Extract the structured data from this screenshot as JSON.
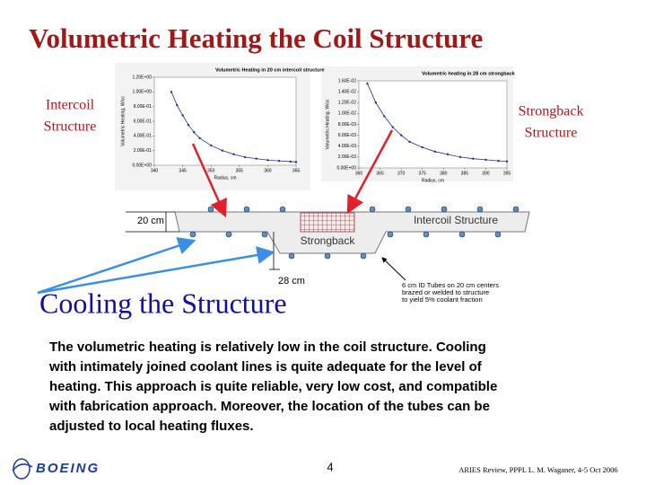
{
  "slide_title": "Volumetric Heating the Coil Structure",
  "labels": {
    "intercoil": [
      "Intercoil",
      "Structure"
    ],
    "strongback": [
      "Strongback",
      "Structure"
    ],
    "cooling": "Cooling the Structure"
  },
  "diagram": {
    "dim_top": "20 cm",
    "dim_bottom": "28 cm",
    "intercoil": "Intercoil Structure",
    "strongback": "Strongback",
    "note": [
      "6 cm ID Tubes on 20 cm centers",
      "brazed or welded to structure",
      "to yield 5% coolant fraction"
    ]
  },
  "body": [
    "The volumetric heating is relatively low in the coil structure. Cooling",
    "with intimately joined coolant lines is quite adequate for the level of",
    "heating. This approach is quite reliable, very low cost, and compatible",
    "with fabrication approach.   Moreover, the location of the tubes can be",
    "adjusted to local heating fluxes."
  ],
  "footer": {
    "logo": "BOEING",
    "page": "4",
    "credit": "ARIES Review, PPPL   L. M. Waganer, 4-5 Oct 2006"
  },
  "chart_data": [
    {
      "type": "line",
      "title": "Volumetric Heating in 20 cm intercoil structure",
      "x_label": "Radius, cm",
      "y_label": "Volumetric Heating, W/cc",
      "color": "#1f2f8f",
      "x": [
        343,
        344,
        345,
        346,
        347,
        348,
        350,
        352,
        354,
        356,
        358,
        360,
        362,
        364,
        365
      ],
      "values": [
        1.0,
        0.82,
        0.68,
        0.55,
        0.45,
        0.37,
        0.27,
        0.2,
        0.15,
        0.11,
        0.09,
        0.07,
        0.06,
        0.05,
        0.045
      ],
      "xlim": [
        340,
        365
      ],
      "ylim": [
        0,
        1.2
      ],
      "xticks": [
        340,
        345,
        350,
        355,
        360,
        365
      ],
      "yticks": [
        {
          "value": 0,
          "label": "0.00E+00"
        },
        {
          "value": 0.2,
          "label": "2.00E-01"
        },
        {
          "value": 0.4,
          "label": "4.00E-01"
        },
        {
          "value": 0.6,
          "label": "6.00E-01"
        },
        {
          "value": 0.8,
          "label": "8.00E-01"
        },
        {
          "value": 1.0,
          "label": "1.00E+00"
        },
        {
          "value": 1.2,
          "label": "1.20E+00"
        }
      ]
    },
    {
      "type": "line",
      "title": "Volumetric heating in 28 cm strongback",
      "x_label": "Radius, cm",
      "y_label": "Volumetric Heating, W/cc",
      "color": "#1f2f8f",
      "x": [
        362,
        364,
        366,
        368,
        370,
        372,
        375,
        378,
        381,
        384,
        387,
        390,
        393,
        395
      ],
      "values": [
        0.0155,
        0.012,
        0.0095,
        0.0075,
        0.006,
        0.0048,
        0.0038,
        0.003,
        0.0025,
        0.002,
        0.0017,
        0.0015,
        0.0013,
        0.0012
      ],
      "xlim": [
        360,
        395
      ],
      "ylim": [
        0,
        0.016
      ],
      "xticks": [
        360,
        365,
        370,
        375,
        380,
        385,
        390,
        395
      ],
      "yticks": [
        {
          "value": 0,
          "label": "0.00E+00"
        },
        {
          "value": 0.002,
          "label": "2.00E-03"
        },
        {
          "value": 0.004,
          "label": "4.00E-03"
        },
        {
          "value": 0.006,
          "label": "6.00E-03"
        },
        {
          "value": 0.008,
          "label": "8.00E-03"
        },
        {
          "value": 0.01,
          "label": "1.00E-02"
        },
        {
          "value": 0.012,
          "label": "1.20E-02"
        },
        {
          "value": 0.014,
          "label": "1.40E-02"
        },
        {
          "value": 0.016,
          "label": "1.60E-02"
        }
      ]
    }
  ]
}
